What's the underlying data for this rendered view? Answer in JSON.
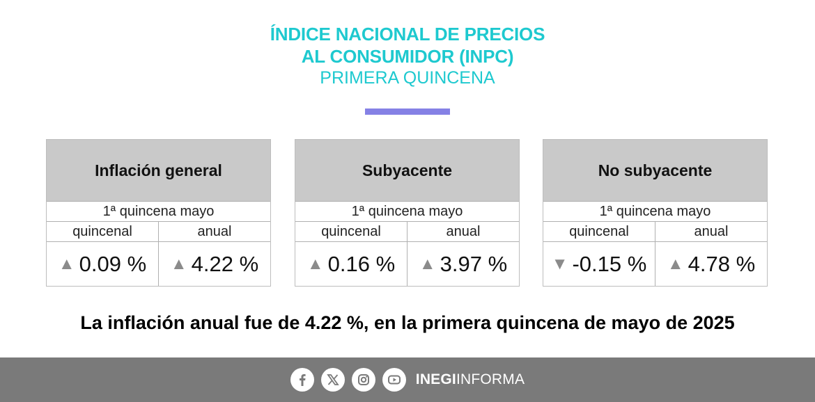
{
  "header": {
    "title_line1": "ÍNDICE NACIONAL DE PRECIOS",
    "title_line2": "AL CONSUMIDOR (INPC)",
    "subtitle": "PRIMERA QUINCENA"
  },
  "colors": {
    "accent": "#1ec9cf",
    "bar": "#8581e5",
    "card_header": "#c9c9c9",
    "footer": "#7a7a7a"
  },
  "cards": [
    {
      "title": "Inflación general",
      "period": "1ª quincena mayo",
      "col1": "quincenal",
      "col2": "anual",
      "q_dir": "up",
      "q_arrow": "▲",
      "q_value": "0.09 %",
      "a_dir": "up",
      "a_arrow": "▲",
      "a_value": "4.22 %"
    },
    {
      "title": "Subyacente",
      "period": "1ª quincena mayo",
      "col1": "quincenal",
      "col2": "anual",
      "q_dir": "up",
      "q_arrow": "▲",
      "q_value": "0.16 %",
      "a_dir": "up",
      "a_arrow": "▲",
      "a_value": "3.97 %"
    },
    {
      "title": "No subyacente",
      "period": "1ª quincena mayo",
      "col1": "quincenal",
      "col2": "anual",
      "q_dir": "down",
      "q_arrow": "▼",
      "q_value": "-0.15 %",
      "a_dir": "up",
      "a_arrow": "▲",
      "a_value": "4.78 %"
    }
  ],
  "summary": "La inflación anual fue de 4.22 %, en la primera quincena de mayo de 2025",
  "footer": {
    "icons": [
      "facebook-icon",
      "x-icon",
      "instagram-icon",
      "youtube-icon"
    ],
    "brand_bold": "INEGI",
    "brand_light": "INFORMA"
  }
}
